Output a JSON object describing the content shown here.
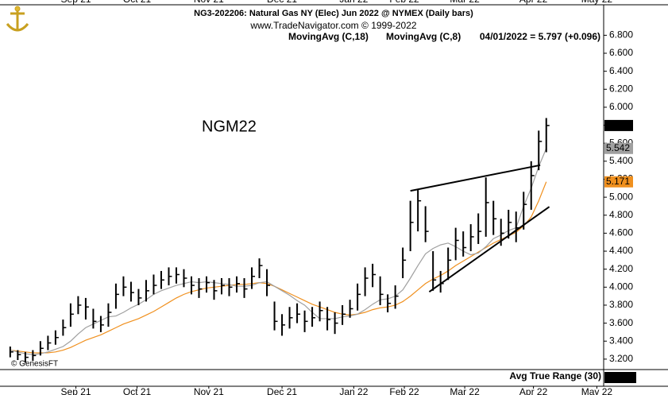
{
  "chart_data": {
    "type": "ohlc",
    "title": "NG3-202206:  Natural Gas NY (Elec) Jun 2022 @ NYMEX  (Daily bars)",
    "subtitle": "www.TradeNavigator.com © 1999-2022",
    "last_label": "04/01/2022 = 5.797 (+0.096)",
    "symbol_label": "NGM22",
    "watermark": "© GenesisFT",
    "bar_color": "#000000",
    "high": [
      3.34,
      3.3,
      3.28,
      3.3,
      3.4,
      3.46,
      3.52,
      3.64,
      3.82,
      3.9,
      3.88,
      3.76,
      3.68,
      3.82,
      4.04,
      4.12,
      4.06,
      3.98,
      4.08,
      4.14,
      4.18,
      4.22,
      4.22,
      4.2,
      4.12,
      4.1,
      4.12,
      4.08,
      4.1,
      4.1,
      4.12,
      4.1,
      4.22,
      4.32,
      4.2,
      3.84,
      3.7,
      3.78,
      3.82,
      3.74,
      3.78,
      3.84,
      3.78,
      3.72,
      3.8,
      3.86,
      4.04,
      4.22,
      4.26,
      4.12,
      3.92,
      4.02,
      4.44,
      4.96,
      5.08,
      4.9,
      4.4,
      4.18,
      4.44,
      4.66,
      4.62,
      4.7,
      4.82,
      5.22,
      4.96,
      4.76,
      4.86,
      4.84,
      5.06,
      5.4,
      5.74,
      5.88
    ],
    "low": [
      3.22,
      3.19,
      3.16,
      3.18,
      3.24,
      3.3,
      3.36,
      3.46,
      3.56,
      3.7,
      3.64,
      3.54,
      3.5,
      3.56,
      3.76,
      3.9,
      3.84,
      3.8,
      3.84,
      3.92,
      3.98,
      4.02,
      4.04,
      4.0,
      3.92,
      3.88,
      3.94,
      3.86,
      3.92,
      3.9,
      3.94,
      3.88,
      3.98,
      4.1,
      3.9,
      3.52,
      3.46,
      3.54,
      3.6,
      3.5,
      3.56,
      3.62,
      3.52,
      3.48,
      3.58,
      3.66,
      3.74,
      3.9,
      4.0,
      3.8,
      3.72,
      3.76,
      4.1,
      4.4,
      4.62,
      4.5,
      3.96,
      3.94,
      4.08,
      4.3,
      4.34,
      4.4,
      4.48,
      4.56,
      4.58,
      4.46,
      4.54,
      4.5,
      4.64,
      4.86,
      5.3,
      5.5
    ],
    "close": [
      3.28,
      3.25,
      3.22,
      3.24,
      3.32,
      3.38,
      3.44,
      3.55,
      3.7,
      3.8,
      3.78,
      3.62,
      3.58,
      3.72,
      3.92,
      4.0,
      3.94,
      3.88,
      3.96,
      4.02,
      4.08,
      4.12,
      4.14,
      4.1,
      4.02,
      3.98,
      4.05,
      3.96,
      4.02,
      4.0,
      4.04,
      3.98,
      4.12,
      4.24,
      4.02,
      3.62,
      3.58,
      3.66,
      3.7,
      3.62,
      3.66,
      3.74,
      3.64,
      3.6,
      3.7,
      3.76,
      3.92,
      4.1,
      4.14,
      3.92,
      3.82,
      3.9,
      4.3,
      4.72,
      4.96,
      4.62,
      4.08,
      4.04,
      4.3,
      4.52,
      4.44,
      4.56,
      4.62,
      4.94,
      4.76,
      4.6,
      4.72,
      4.66,
      4.92,
      5.24,
      5.62,
      5.797
    ],
    "series": [
      {
        "name": "MovingAvg (C,18)",
        "color": "#f0901e",
        "values": [
          3.3,
          3.29,
          3.28,
          3.27,
          3.27,
          3.27,
          3.28,
          3.3,
          3.33,
          3.37,
          3.41,
          3.44,
          3.47,
          3.51,
          3.55,
          3.59,
          3.62,
          3.65,
          3.69,
          3.73,
          3.78,
          3.83,
          3.88,
          3.92,
          3.95,
          3.97,
          3.99,
          4.0,
          4.01,
          4.02,
          4.03,
          4.03,
          4.04,
          4.05,
          4.04,
          4.01,
          3.97,
          3.93,
          3.89,
          3.85,
          3.81,
          3.78,
          3.75,
          3.72,
          3.7,
          3.69,
          3.7,
          3.72,
          3.75,
          3.77,
          3.78,
          3.8,
          3.84,
          3.9,
          3.97,
          4.04,
          4.09,
          4.13,
          4.18,
          4.24,
          4.29,
          4.34,
          4.39,
          4.44,
          4.49,
          4.53,
          4.57,
          4.61,
          4.68,
          4.78,
          4.96,
          5.171
        ]
      },
      {
        "name": "MovingAvg (C,8)",
        "color": "#a0a0a0",
        "values": [
          3.3,
          3.28,
          3.26,
          3.25,
          3.26,
          3.28,
          3.31,
          3.34,
          3.4,
          3.48,
          3.55,
          3.59,
          3.63,
          3.67,
          3.68,
          3.72,
          3.77,
          3.81,
          3.86,
          3.92,
          3.96,
          3.99,
          4.02,
          4.04,
          4.06,
          4.05,
          4.06,
          4.05,
          4.04,
          4.03,
          4.01,
          4.01,
          4.02,
          4.05,
          4.06,
          4.01,
          3.96,
          3.91,
          3.85,
          3.8,
          3.72,
          3.65,
          3.65,
          3.65,
          3.67,
          3.68,
          3.7,
          3.75,
          3.81,
          3.86,
          3.87,
          3.9,
          3.97,
          4.1,
          4.24,
          4.37,
          4.43,
          4.47,
          4.49,
          4.45,
          4.4,
          4.36,
          4.38,
          4.45,
          4.54,
          4.58,
          4.63,
          4.66,
          4.9,
          5.1,
          5.34,
          5.542
        ]
      }
    ],
    "trendlines": [
      {
        "x": [
          53.0,
          70.2
        ],
        "y": [
          5.071,
          5.356
        ]
      },
      {
        "x": [
          55.5,
          71.4
        ],
        "y": [
          3.948,
          4.893
        ]
      }
    ],
    "xlim": [
      -0.3,
      78.6
    ],
    "xticks": [
      {
        "value": 8.7,
        "label": "Sep 21"
      },
      {
        "value": 16.8,
        "label": "Oct 21"
      },
      {
        "value": 26.3,
        "label": "Nov 21"
      },
      {
        "value": 36.0,
        "label": "Dec 21"
      },
      {
        "value": 45.5,
        "label": "Jan 22"
      },
      {
        "value": 52.2,
        "label": "Feb 22"
      },
      {
        "value": 60.2,
        "label": "Mar 22"
      },
      {
        "value": 69.3,
        "label": "Apr 22"
      },
      {
        "value": 77.7,
        "label": "May 22"
      }
    ],
    "ylim": [
      3.084,
      7.139
    ],
    "yticks": [
      {
        "value": 3.2,
        "label": "3.200"
      },
      {
        "value": 3.4,
        "label": "3.400"
      },
      {
        "value": 3.6,
        "label": "3.600"
      },
      {
        "value": 3.8,
        "label": "3.800"
      },
      {
        "value": 4.0,
        "label": "4.000"
      },
      {
        "value": 4.2,
        "label": "4.200"
      },
      {
        "value": 4.4,
        "label": "4.400"
      },
      {
        "value": 4.6,
        "label": "4.600"
      },
      {
        "value": 4.8,
        "label": "4.800"
      },
      {
        "value": 5.0,
        "label": "5.000"
      },
      {
        "value": 5.2,
        "label": "5.200"
      },
      {
        "value": 5.4,
        "label": "5.400"
      },
      {
        "value": 5.6,
        "label": "5.600"
      },
      {
        "value": 5.8,
        "label": "5.800"
      },
      {
        "value": 6.0,
        "label": "6.000"
      },
      {
        "value": 6.2,
        "label": "6.200"
      },
      {
        "value": 6.4,
        "label": "6.400"
      },
      {
        "value": 6.6,
        "label": "6.600"
      },
      {
        "value": 6.8,
        "label": "6.800"
      }
    ],
    "indicator": {
      "label": "Avg True Range (30)",
      "value": 0.2698
    }
  }
}
